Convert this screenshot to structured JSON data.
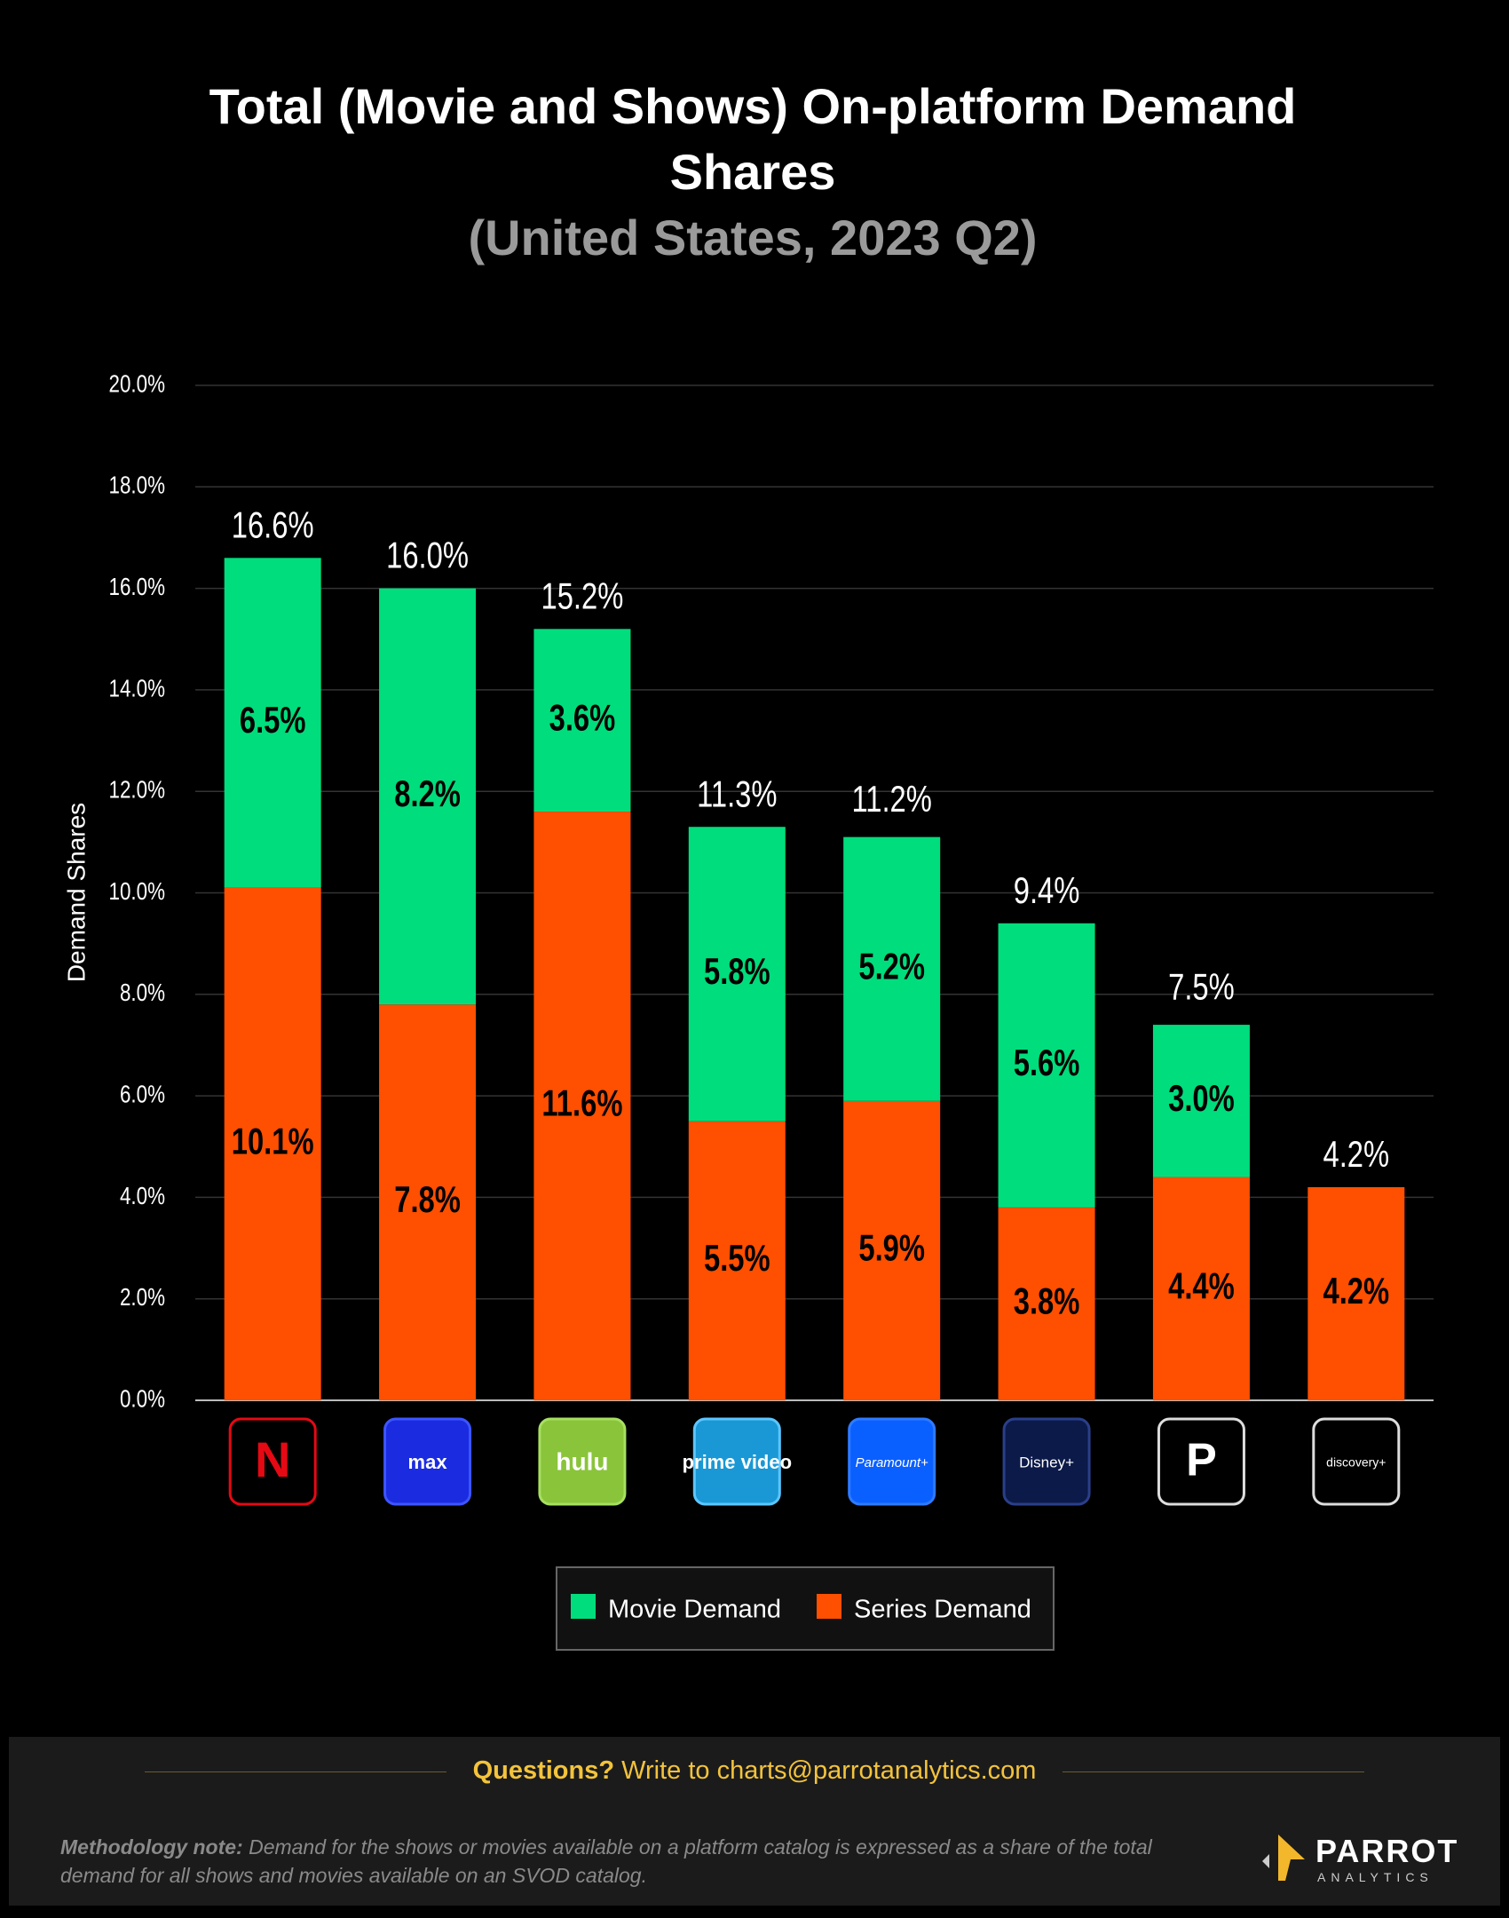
{
  "chart_data": {
    "type": "stacked-bar",
    "title": "Total (Movie and Shows) On-platform Demand Shares",
    "subtitle": "(United States, 2023 Q2)",
    "y_label": "Demand Shares",
    "categories": [
      "N",
      "max",
      "hulu",
      "prime video",
      "Paramount+",
      "Disney+",
      "P",
      "discovery+"
    ],
    "series": [
      {
        "name": "Movie Demand",
        "color": "#00dd7c",
        "values": [
          6.5,
          8.2,
          3.6,
          5.8,
          5.2,
          5.6,
          3.0,
          null
        ],
        "value_labels": [
          "6.5%",
          "8.2%",
          "3.6%",
          "5.8%",
          "5.2%",
          "5.6%",
          "3.0%",
          null
        ]
      },
      {
        "name": "Series Demand",
        "color": "#ff4f00",
        "values": [
          10.1,
          7.8,
          11.6,
          5.5,
          5.9,
          3.8,
          4.4,
          4.2
        ],
        "value_labels": [
          "10.1%",
          "7.8%",
          "11.6%",
          "5.5%",
          "5.9%",
          "3.8%",
          "4.4%",
          "4.2%"
        ]
      }
    ],
    "totals": {
      "values": [
        16.6,
        16.0,
        15.2,
        11.3,
        11.2,
        9.4,
        7.5,
        4.2
      ],
      "value_labels": [
        "16.6%",
        "16.0%",
        "15.2%",
        "11.3%",
        "11.2%",
        "9.4%",
        "7.5%",
        "4.2%"
      ]
    },
    "ylim": [
      0,
      20
    ],
    "yticks": [
      {
        "value": 0,
        "label": "0.0%"
      },
      {
        "value": 2,
        "label": "2.0%"
      },
      {
        "value": 4,
        "label": "4.0%"
      },
      {
        "value": 6,
        "label": "6.0%"
      },
      {
        "value": 8,
        "label": "8.0%"
      },
      {
        "value": 10,
        "label": "10.0%"
      },
      {
        "value": 12,
        "label": "12.0%"
      },
      {
        "value": 14,
        "label": "14.0%"
      },
      {
        "value": 16,
        "label": "16.0%"
      },
      {
        "value": 18,
        "label": "18.0%"
      },
      {
        "value": 20,
        "label": "20.0%"
      }
    ],
    "grid": true
  },
  "footer": {
    "question_bold": "Questions?",
    "question_text": "Write to charts@parrotanalytics.com",
    "note_bold": "Methodology note:",
    "note_text": "Demand for the shows or movies available on a platform catalog is expressed as a share of the total demand for all shows and movies available on an SVOD catalog.",
    "brand": "PARROT",
    "brand_sub": "ANALYTICS"
  }
}
